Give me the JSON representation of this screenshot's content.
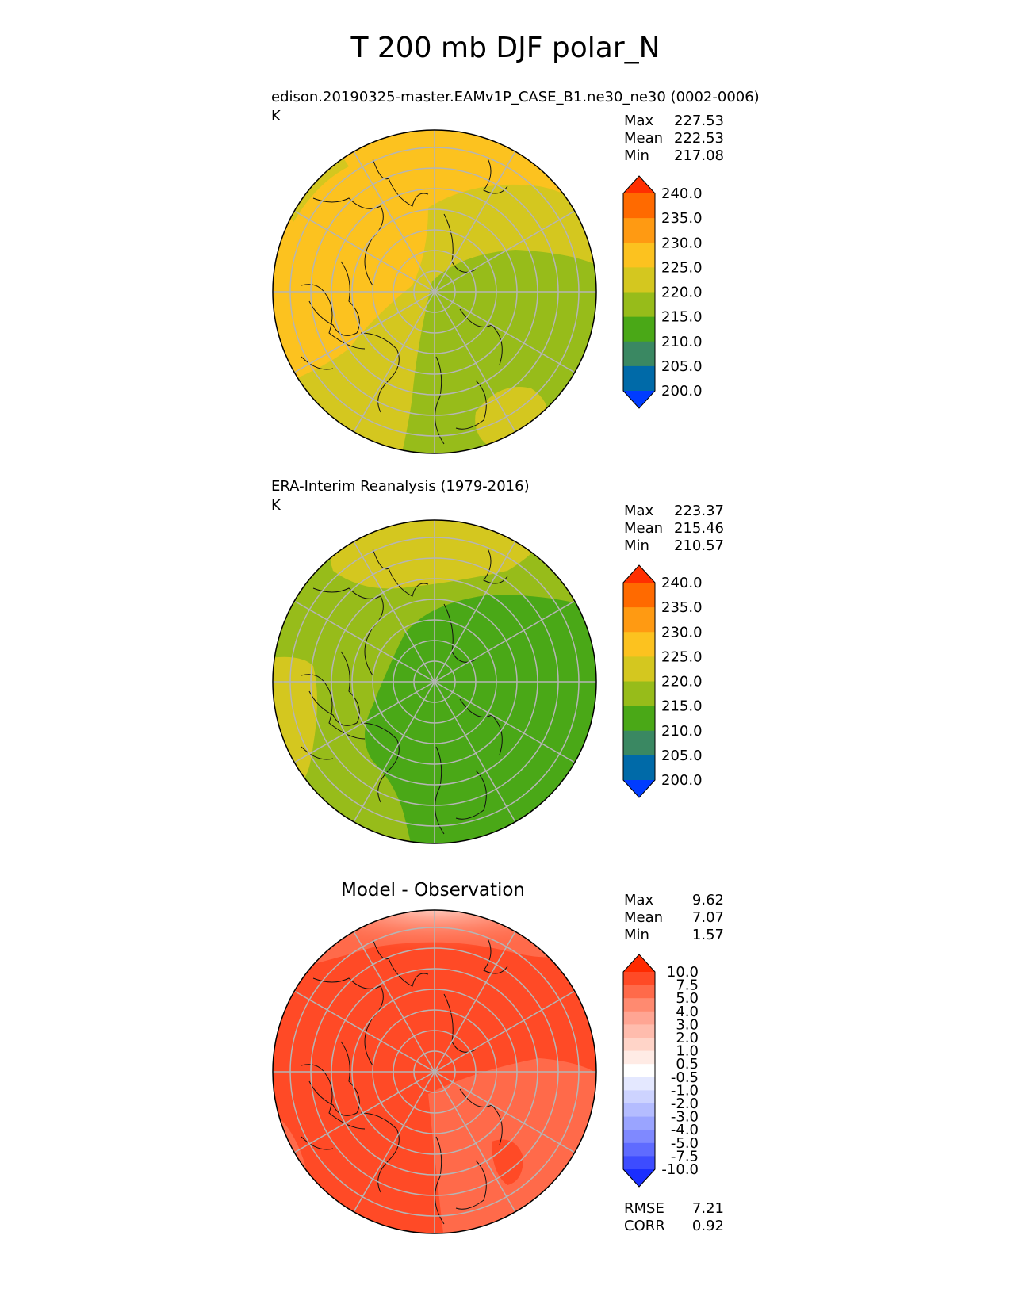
{
  "title": "T 200 mb DJF polar_N",
  "panels": [
    {
      "title": "edison.20190325-master.EAMv1P_CASE_B1.ne30_ne30 (0002-0006)",
      "units": "K",
      "stats": [
        {
          "label": "Max",
          "value": "227.53"
        },
        {
          "label": "Mean",
          "value": "222.53"
        },
        {
          "label": "Min",
          "value": "217.08"
        }
      ],
      "colorbar": {
        "ticks": [
          "240.0",
          "235.0",
          "230.0",
          "225.0",
          "220.0",
          "215.0",
          "210.0",
          "205.0",
          "200.0"
        ],
        "colors": [
          "#ff2f00",
          "#ff6a00",
          "#ff9a12",
          "#fcc21f",
          "#d4c71f",
          "#97bc1a",
          "#4aa817",
          "#3a8862",
          "#006aa8",
          "#003cff"
        ]
      }
    },
    {
      "title": "ERA-Interim Reanalysis (1979-2016)",
      "units": "K",
      "stats": [
        {
          "label": "Max",
          "value": "223.37"
        },
        {
          "label": "Mean",
          "value": "215.46"
        },
        {
          "label": "Min",
          "value": "210.57"
        }
      ],
      "colorbar": {
        "ticks": [
          "240.0",
          "235.0",
          "230.0",
          "225.0",
          "220.0",
          "215.0",
          "210.0",
          "205.0",
          "200.0"
        ],
        "colors": [
          "#ff2f00",
          "#ff6a00",
          "#ff9a12",
          "#fcc21f",
          "#d4c71f",
          "#97bc1a",
          "#4aa817",
          "#3a8862",
          "#006aa8",
          "#003cff"
        ]
      }
    },
    {
      "title": "Model - Observation",
      "stats": [
        {
          "label": "Max",
          "value": "9.62"
        },
        {
          "label": "Mean",
          "value": "7.07"
        },
        {
          "label": "Min",
          "value": "1.57"
        }
      ],
      "extra_stats": [
        {
          "label": "RMSE",
          "value": "7.21"
        },
        {
          "label": "CORR",
          "value": "0.92"
        }
      ],
      "colorbar": {
        "ticks": [
          "10.0",
          "7.5",
          "5.0",
          "4.0",
          "3.0",
          "2.0",
          "1.0",
          "0.5",
          "-0.5",
          "-1.0",
          "-2.0",
          "-3.0",
          "-4.0",
          "-5.0",
          "-7.5",
          "-10.0"
        ],
        "colors": [
          "#ff2a00",
          "#ff4a26",
          "#ff6a4a",
          "#ff8a70",
          "#ffa593",
          "#ffbcad",
          "#ffd4c8",
          "#ffebe5",
          "#ffffff",
          "#e4e8ff",
          "#cdd3ff",
          "#b4bcff",
          "#9aa4ff",
          "#7f89ff",
          "#5f6bff",
          "#3d4cff",
          "#1a2eff"
        ]
      }
    }
  ]
}
